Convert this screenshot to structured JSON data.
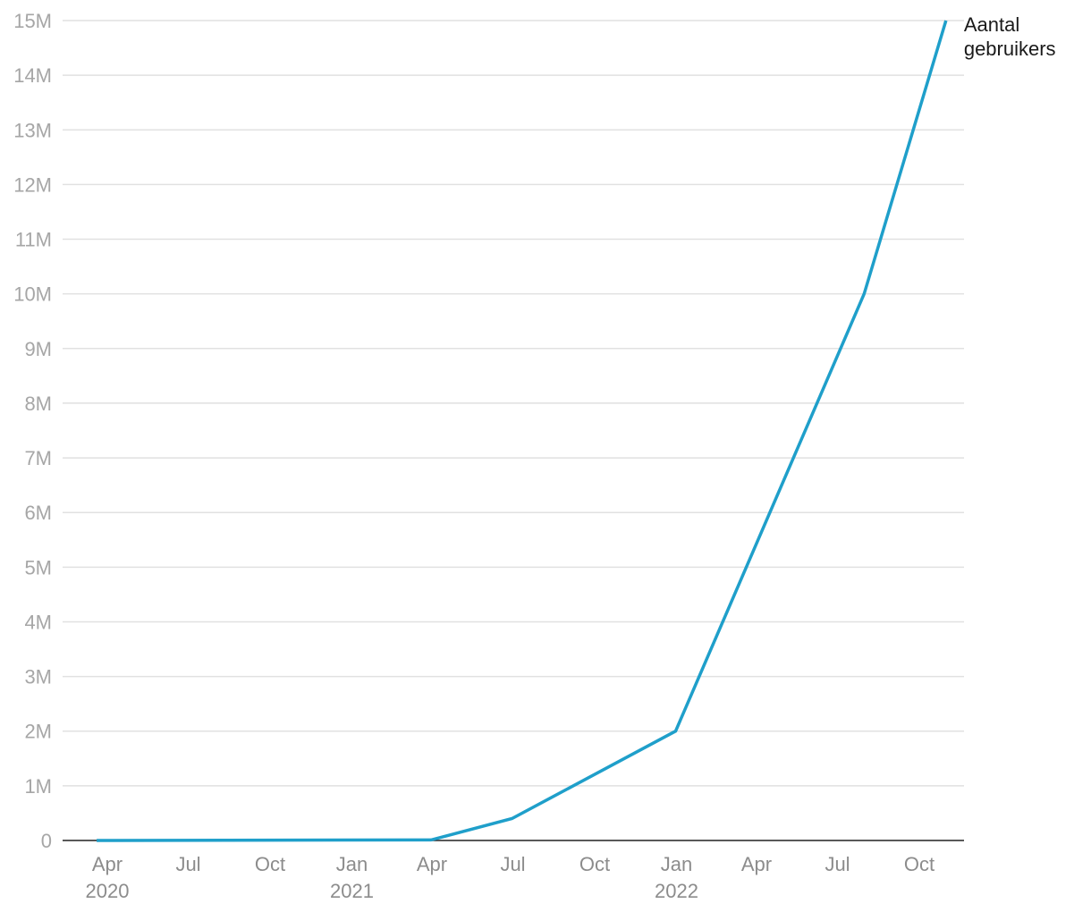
{
  "chart_data": {
    "type": "line",
    "title": "",
    "xlabel": "",
    "ylabel": "",
    "ylim": [
      0,
      15000000
    ],
    "grid": true,
    "legend": "end-of-line label",
    "colors": {
      "line": "#1f9fca",
      "baseline": "#222222",
      "grid": "#e1e1e1",
      "tick": "#a6a6a6"
    },
    "y_ticks": [
      {
        "value": 0,
        "label": "0"
      },
      {
        "value": 1000000,
        "label": "1M"
      },
      {
        "value": 2000000,
        "label": "2M"
      },
      {
        "value": 3000000,
        "label": "3M"
      },
      {
        "value": 4000000,
        "label": "4M"
      },
      {
        "value": 5000000,
        "label": "5M"
      },
      {
        "value": 6000000,
        "label": "6M"
      },
      {
        "value": 7000000,
        "label": "7M"
      },
      {
        "value": 8000000,
        "label": "8M"
      },
      {
        "value": 9000000,
        "label": "9M"
      },
      {
        "value": 10000000,
        "label": "10M"
      },
      {
        "value": 11000000,
        "label": "11M"
      },
      {
        "value": 12000000,
        "label": "12M"
      },
      {
        "value": 13000000,
        "label": "13M"
      },
      {
        "value": 14000000,
        "label": "14M"
      },
      {
        "value": 15000000,
        "label": "15M"
      }
    ],
    "x_ticks": [
      {
        "date": "2020-04-01",
        "label": "Apr",
        "year": "2020"
      },
      {
        "date": "2020-07-01",
        "label": "Jul",
        "year": ""
      },
      {
        "date": "2020-10-01",
        "label": "Oct",
        "year": ""
      },
      {
        "date": "2021-01-01",
        "label": "Jan",
        "year": "2021"
      },
      {
        "date": "2021-04-01",
        "label": "Apr",
        "year": ""
      },
      {
        "date": "2021-07-01",
        "label": "Jul",
        "year": ""
      },
      {
        "date": "2021-10-01",
        "label": "Oct",
        "year": ""
      },
      {
        "date": "2022-01-01",
        "label": "Jan",
        "year": "2022"
      },
      {
        "date": "2022-04-01",
        "label": "Apr",
        "year": ""
      },
      {
        "date": "2022-07-01",
        "label": "Jul",
        "year": ""
      },
      {
        "date": "2022-10-01",
        "label": "Oct",
        "year": ""
      }
    ],
    "series": [
      {
        "name": "Aantal gebruikers",
        "points": [
          {
            "x": "2020-03-20",
            "y": 0
          },
          {
            "x": "2021-03-31",
            "y": 10000
          },
          {
            "x": "2021-06-30",
            "y": 400000
          },
          {
            "x": "2021-12-31",
            "y": 2000000
          },
          {
            "x": "2022-07-31",
            "y": 10000000
          },
          {
            "x": "2022-10-31",
            "y": 15000000
          }
        ]
      }
    ]
  }
}
